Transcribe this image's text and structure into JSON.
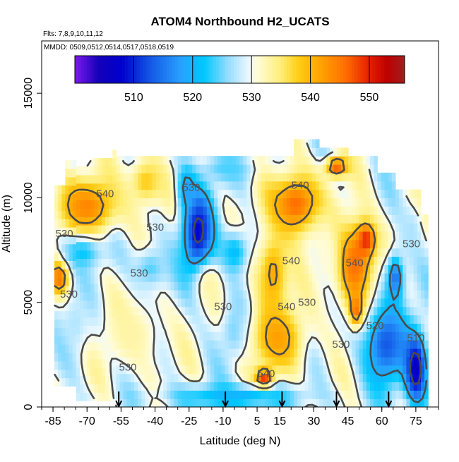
{
  "chart_data": {
    "type": "heatmap",
    "title": "ATOM4 Northbound H2_UCATS",
    "flights_label": "Flts: 7,8,9,10,11,12",
    "dates_label": "MMDD: 0509,0512,0514,0517,0518,0519",
    "xlabel": "Latitude (deg N)",
    "ylabel": "Altitude (m)",
    "xlim": [
      -90,
      85
    ],
    "ylim": [
      0,
      17500
    ],
    "x_ticks": [
      -85,
      -70,
      -55,
      -40,
      -25,
      -10,
      5,
      15,
      30,
      45,
      60,
      75
    ],
    "x_tick_labels": [
      "-85",
      "-70",
      "-55",
      "-40",
      "-25",
      "-10",
      "5",
      "15",
      "30",
      "45",
      "60",
      "75"
    ],
    "y_ticks": [
      0,
      5000,
      10000,
      15000
    ],
    "y_tick_labels": [
      "0",
      "5000",
      "10000",
      "15000"
    ],
    "colorbar": {
      "range": [
        500,
        556
      ],
      "ticks": [
        510,
        520,
        530,
        540,
        550
      ],
      "tick_labels": [
        "510",
        "520",
        "530",
        "540",
        "550"
      ]
    },
    "contour_levels": [
      510,
      520,
      530,
      540
    ],
    "contour_labels": [
      {
        "text": "540",
        "lat": -62,
        "alt": 10200
      },
      {
        "text": "530",
        "lat": -24,
        "alt": 10500
      },
      {
        "text": "530",
        "lat": -80,
        "alt": 8300
      },
      {
        "text": "530",
        "lat": -40,
        "alt": 8600
      },
      {
        "text": "530",
        "lat": -47,
        "alt": 6400
      },
      {
        "text": "530",
        "lat": -78,
        "alt": 5400
      },
      {
        "text": "530",
        "lat": -10,
        "alt": 4800
      },
      {
        "text": "530",
        "lat": -52,
        "alt": 1900
      },
      {
        "text": "540",
        "lat": 24,
        "alt": 10600
      },
      {
        "text": "540",
        "lat": 20,
        "alt": 7000
      },
      {
        "text": "540",
        "lat": 48,
        "alt": 6900
      },
      {
        "text": "540",
        "lat": 18,
        "alt": 4800
      },
      {
        "text": "530",
        "lat": 27,
        "alt": 5000
      },
      {
        "text": "530",
        "lat": 42,
        "alt": 3000
      },
      {
        "text": "520",
        "lat": 57,
        "alt": 3900
      },
      {
        "text": "510",
        "lat": 75,
        "alt": 3300
      },
      {
        "text": "530",
        "lat": 73,
        "alt": 7800
      },
      {
        "text": "540",
        "lat": 9,
        "alt": 1600
      }
    ],
    "regions": [
      {
        "lat": -70,
        "alt": 9600,
        "value": 544,
        "rx": 14,
        "ry": 1400
      },
      {
        "lat": -44,
        "alt": 10800,
        "value": 538,
        "rx": 8,
        "ry": 1200
      },
      {
        "lat": -82,
        "alt": 6200,
        "value": 547,
        "rx": 4,
        "ry": 800
      },
      {
        "lat": -21,
        "alt": 8400,
        "value": 508,
        "rx": 7,
        "ry": 2100
      },
      {
        "lat": -26,
        "alt": 10500,
        "value": 518,
        "rx": 4,
        "ry": 1000
      },
      {
        "lat": -5,
        "alt": 7400,
        "value": 521,
        "rx": 7,
        "ry": 1100
      },
      {
        "lat": -42,
        "alt": 6600,
        "value": 524,
        "rx": 8,
        "ry": 1100
      },
      {
        "lat": -72,
        "alt": 7400,
        "value": 522,
        "rx": 9,
        "ry": 800
      },
      {
        "lat": -75,
        "alt": 4000,
        "value": 527,
        "rx": 7,
        "ry": 1500
      },
      {
        "lat": -50,
        "alt": 3500,
        "value": 533,
        "rx": 14,
        "ry": 1800
      },
      {
        "lat": -16,
        "alt": 5900,
        "value": 533,
        "rx": 6,
        "ry": 1000
      },
      {
        "lat": -4,
        "alt": 3600,
        "value": 524,
        "rx": 7,
        "ry": 1300
      },
      {
        "lat": 22,
        "alt": 9700,
        "value": 546,
        "rx": 12,
        "ry": 1500
      },
      {
        "lat": 12,
        "alt": 6400,
        "value": 541,
        "rx": 7,
        "ry": 2000
      },
      {
        "lat": 14,
        "alt": 3300,
        "value": 542,
        "rx": 12,
        "ry": 1600
      },
      {
        "lat": 8,
        "alt": 1300,
        "value": 552,
        "rx": 4,
        "ry": 500
      },
      {
        "lat": 48,
        "alt": 6800,
        "value": 546,
        "rx": 9,
        "ry": 2200
      },
      {
        "lat": 53,
        "alt": 8000,
        "value": 550,
        "rx": 4,
        "ry": 800
      },
      {
        "lat": 49,
        "alt": 4600,
        "value": 549,
        "rx": 3,
        "ry": 700
      },
      {
        "lat": 35,
        "alt": 7400,
        "value": 531,
        "rx": 6,
        "ry": 2000
      },
      {
        "lat": 62,
        "alt": 3000,
        "value": 513,
        "rx": 10,
        "ry": 2000
      },
      {
        "lat": 75,
        "alt": 1800,
        "value": 506,
        "rx": 5,
        "ry": 1700
      },
      {
        "lat": 66,
        "alt": 6200,
        "value": 515,
        "rx": 4,
        "ry": 1200
      },
      {
        "lat": 73,
        "alt": 8400,
        "value": 527,
        "rx": 5,
        "ry": 1300
      },
      {
        "lat": 40,
        "alt": 11500,
        "value": 547,
        "rx": 5,
        "ry": 500
      },
      {
        "lat": -8,
        "alt": 11400,
        "value": 524,
        "rx": 12,
        "ry": 700
      },
      {
        "lat": -5,
        "alt": 500,
        "value": 520,
        "rx": 30,
        "ry": 600
      }
    ],
    "profile_markers_lat": [
      -56,
      -9,
      16,
      40,
      63
    ]
  }
}
